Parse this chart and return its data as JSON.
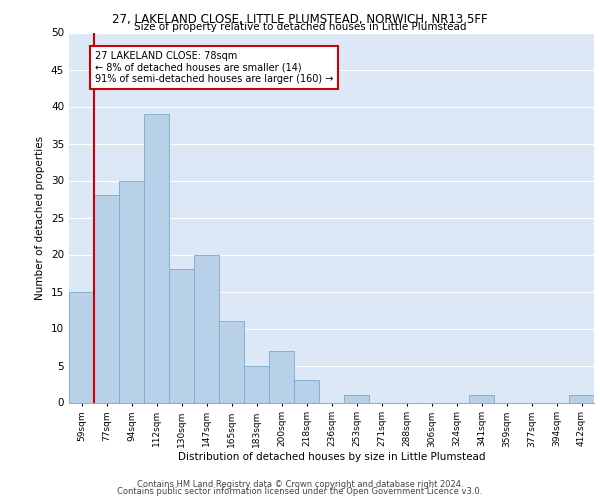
{
  "title": "27, LAKELAND CLOSE, LITTLE PLUMSTEAD, NORWICH, NR13 5FF",
  "subtitle": "Size of property relative to detached houses in Little Plumstead",
  "xlabel": "Distribution of detached houses by size in Little Plumstead",
  "ylabel": "Number of detached properties",
  "bar_values": [
    15,
    28,
    30,
    39,
    18,
    20,
    11,
    5,
    7,
    3,
    0,
    1,
    0,
    0,
    0,
    0,
    1,
    0,
    0,
    0,
    1
  ],
  "bin_labels": [
    "59sqm",
    "77sqm",
    "94sqm",
    "112sqm",
    "130sqm",
    "147sqm",
    "165sqm",
    "183sqm",
    "200sqm",
    "218sqm",
    "236sqm",
    "253sqm",
    "271sqm",
    "288sqm",
    "306sqm",
    "324sqm",
    "341sqm",
    "359sqm",
    "377sqm",
    "394sqm",
    "412sqm"
  ],
  "bar_color": "#b8d0e8",
  "bar_edge_color": "#7aaac8",
  "marker_line_color": "#cc0000",
  "annotation_text": "27 LAKELAND CLOSE: 78sqm\n← 8% of detached houses are smaller (14)\n91% of semi-detached houses are larger (160) →",
  "annotation_box_color": "#ffffff",
  "annotation_box_edge": "#cc0000",
  "ylim": [
    0,
    50
  ],
  "yticks": [
    0,
    5,
    10,
    15,
    20,
    25,
    30,
    35,
    40,
    45,
    50
  ],
  "footer_line1": "Contains HM Land Registry data © Crown copyright and database right 2024.",
  "footer_line2": "Contains public sector information licensed under the Open Government Licence v3.0.",
  "bg_color": "#dce8f5",
  "grid_color": "#ffffff",
  "fig_width": 6.0,
  "fig_height": 5.0,
  "dpi": 100
}
